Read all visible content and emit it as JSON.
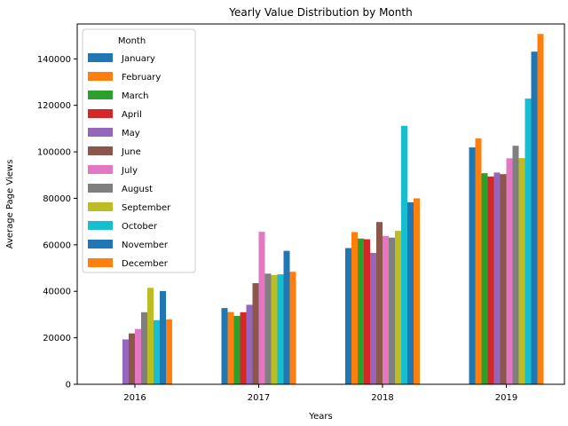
{
  "chart_data": {
    "type": "bar",
    "title": "Yearly Value Distribution by Month",
    "xlabel": "Years",
    "ylabel": "Average Page Views",
    "ylim": [
      0,
      155000
    ],
    "yticks": [
      0,
      20000,
      40000,
      60000,
      80000,
      100000,
      120000,
      140000
    ],
    "categories": [
      "2016",
      "2017",
      "2018",
      "2019"
    ],
    "legend": {
      "title": "Month",
      "placement": "top-left"
    },
    "grid": false,
    "series": [
      {
        "name": "January",
        "color": "#1f77b4",
        "values": [
          null,
          32800,
          58600,
          101900
        ]
      },
      {
        "name": "February",
        "color": "#ff7f0e",
        "values": [
          null,
          31100,
          65500,
          105800
        ]
      },
      {
        "name": "March",
        "color": "#2ca02c",
        "values": [
          null,
          29400,
          62700,
          90800
        ]
      },
      {
        "name": "April",
        "color": "#d62728",
        "values": [
          null,
          31000,
          62400,
          89400
        ]
      },
      {
        "name": "May",
        "color": "#9467bd",
        "values": [
          19300,
          34200,
          56500,
          91100
        ]
      },
      {
        "name": "June",
        "color": "#8c564b",
        "values": [
          21900,
          43500,
          69800,
          90400
        ]
      },
      {
        "name": "July",
        "color": "#e377c2",
        "values": [
          23800,
          65600,
          63800,
          97200
        ]
      },
      {
        "name": "August",
        "color": "#7f7f7f",
        "values": [
          31000,
          47600,
          63100,
          102600
        ]
      },
      {
        "name": "September",
        "color": "#bcbd22",
        "values": [
          41500,
          47000,
          66000,
          97300
        ]
      },
      {
        "name": "October",
        "color": "#17becf",
        "values": [
          27600,
          47300,
          111200,
          122900
        ]
      },
      {
        "name": "November",
        "color": "#1f77b4",
        "values": [
          40100,
          57400,
          78300,
          143100
        ]
      },
      {
        "name": "December",
        "color": "#ff7f0e",
        "values": [
          27900,
          48400,
          80000,
          150700
        ]
      }
    ]
  }
}
